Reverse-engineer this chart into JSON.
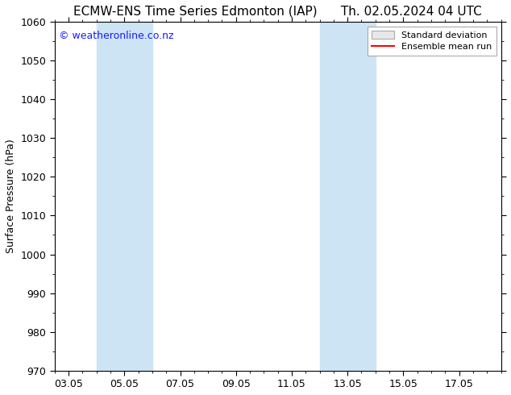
{
  "title_left": "ECMW-ENS Time Series Edmonton (IAP)",
  "title_right": "Th. 02.05.2024 04 UTC",
  "ylabel": "Surface Pressure (hPa)",
  "ylim": [
    970,
    1060
  ],
  "yticks": [
    970,
    980,
    990,
    1000,
    1010,
    1020,
    1030,
    1040,
    1050,
    1060
  ],
  "xtick_labels": [
    "03.05",
    "05.05",
    "07.05",
    "09.05",
    "11.05",
    "13.05",
    "15.05",
    "17.05"
  ],
  "xtick_positions": [
    0,
    2,
    4,
    6,
    8,
    10,
    12,
    14
  ],
  "xlim": [
    -0.5,
    15.5
  ],
  "shaded_regions": [
    {
      "x_start": 1.0,
      "x_end": 3.0,
      "color": "#cde4f5"
    },
    {
      "x_start": 9.0,
      "x_end": 11.0,
      "color": "#cde4f5"
    }
  ],
  "watermark_text": "© weatheronline.co.nz",
  "watermark_color": "#1a1aff",
  "watermark_fontsize": 9,
  "legend_std_label": "Standard deviation",
  "legend_mean_label": "Ensemble mean run",
  "legend_std_facecolor": "#e8e8e8",
  "legend_std_edgecolor": "#aaaaaa",
  "legend_mean_color": "#ff0000",
  "background_color": "#ffffff",
  "plot_bg_color": "#ffffff",
  "title_fontsize": 11,
  "ylabel_fontsize": 9,
  "tick_fontsize": 9,
  "legend_fontsize": 8
}
